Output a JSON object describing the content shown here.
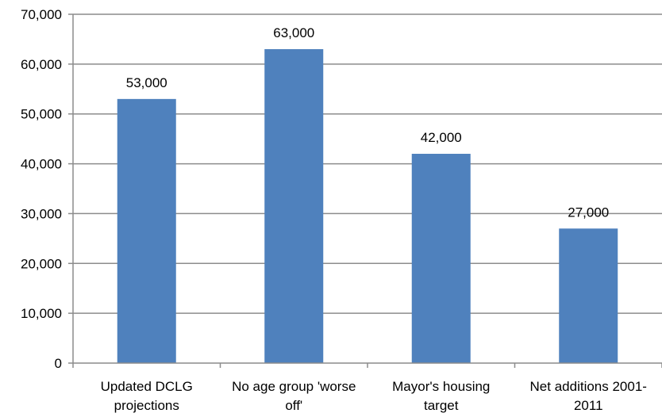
{
  "chart_data": {
    "type": "bar",
    "categories": [
      [
        "Updated DCLG",
        "projections"
      ],
      [
        "No age group 'worse",
        "off'"
      ],
      [
        "Mayor's housing",
        "target"
      ],
      [
        "Net additions 2001-",
        "2011"
      ]
    ],
    "values": [
      53000,
      63000,
      42000,
      27000
    ],
    "data_labels": [
      "53,000",
      "63,000",
      "42,000",
      "27,000"
    ],
    "yticks": [
      0,
      10000,
      20000,
      30000,
      40000,
      50000,
      60000,
      70000
    ],
    "ytick_labels": [
      "0",
      "10,000",
      "20,000",
      "30,000",
      "40,000",
      "50,000",
      "60,000",
      "70,000"
    ],
    "ylim": [
      0,
      70000
    ],
    "grid": true,
    "legend": "none",
    "bar_color": "#4F81BD",
    "grid_color": "#8C8C8C",
    "axis_color": "#8C8C8C"
  }
}
